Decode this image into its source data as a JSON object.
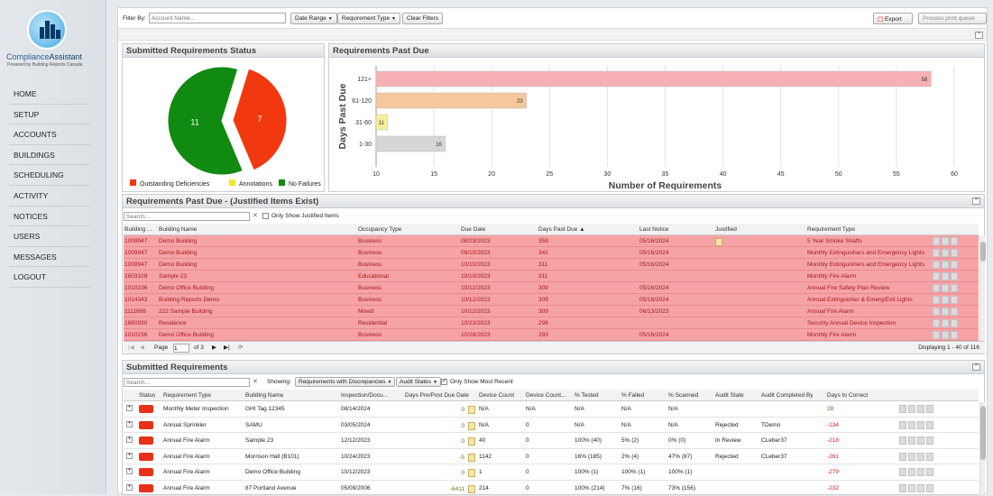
{
  "brand": {
    "name_a": "Compliance",
    "name_b": "Assistant",
    "tagline": "Powered by Building Reports Canada"
  },
  "nav": [
    "HOME",
    "SETUP",
    "ACCOUNTS",
    "BUILDINGS",
    "SCHEDULING",
    "ACTIVITY",
    "NOTICES",
    "USERS",
    "MESSAGES",
    "LOGOUT"
  ],
  "filter": {
    "label": "Filter By:",
    "account_placeholder": "Account Name...",
    "date_range": "Date Range",
    "requirement_type": "Requirement Type",
    "clear": "Clear Filters",
    "export": "Export",
    "process_queue": "Process print queue"
  },
  "status_panel": {
    "title": "Submitted Requirements Status"
  },
  "pastdue_panel": {
    "title": "Requirements Past Due"
  },
  "pie": {
    "type": "pie",
    "slices": [
      {
        "label": "Outstanding Deficiencies",
        "value": 7,
        "color": "#f2380f"
      },
      {
        "label": "Annotations",
        "value": 0,
        "color": "#f2e82a"
      },
      {
        "label": "No Failures",
        "value": 11,
        "color": "#108a10"
      }
    ]
  },
  "chart_data": {
    "type": "bar",
    "title": "",
    "xlabel": "Number of Requirements",
    "ylabel": "Days Past Due",
    "categories": [
      "121+",
      "61-120",
      "31-60",
      "1-30"
    ],
    "values": [
      58,
      23,
      11,
      16
    ],
    "colors": [
      "#f7b0b3",
      "#f4c89c",
      "#f6f09a",
      "#d6d6d6"
    ],
    "xlim": [
      10,
      60
    ],
    "xticks": [
      10,
      15,
      20,
      25,
      30,
      35,
      40,
      45,
      50,
      55,
      60
    ]
  },
  "justified": {
    "title": "Requirements Past Due - (Justified Items Exist)",
    "search_placeholder": "Search...",
    "only_justified": "Only Show Justified Items",
    "headers": [
      "Building ...",
      "Building Name",
      "Occupancy Type",
      "Due Date",
      "Days Past Due ▲",
      "Last Notice",
      "Justified",
      "Requirement Type"
    ],
    "rows": [
      [
        "1009947",
        "Demo Building",
        "Business",
        "08/23/2023",
        "359",
        "05/16/2024",
        "doc",
        "5 Year Smoke Shafts"
      ],
      [
        "1009947",
        "Demo Building",
        "Business",
        "09/10/2023",
        "341",
        "05/16/2024",
        "",
        "Monthly Extinguishers and Emergency Lights"
      ],
      [
        "1009947",
        "Demo Building",
        "Business",
        "10/10/2023",
        "311",
        "05/16/2024",
        "",
        "Monthly Extinguishers and Emergency Lights"
      ],
      [
        "1603109",
        "Sample 23",
        "Educational",
        "10/10/2023",
        "311",
        "",
        "",
        "Monthly Fire Alarm"
      ],
      [
        "1010236",
        "Demo Office Building",
        "Business",
        "10/12/2023",
        "309",
        "05/16/2024",
        "",
        "Annual Fire Safety Plan Review"
      ],
      [
        "1014343",
        "Building Reports Demo",
        "Business",
        "10/12/2023",
        "309",
        "05/16/2024",
        "",
        "Annual Extinguisher & Emerg/Exit Lights"
      ],
      [
        "1111698",
        "222 Sample Building",
        "Mixed",
        "10/12/2023",
        "309",
        "06/13/2023",
        "",
        "Annual Fire Alarm"
      ],
      [
        "1680930",
        "Residence",
        "Residential",
        "10/23/2023",
        "298",
        "",
        "",
        "Security Annual Device Inspection"
      ],
      [
        "1010236",
        "Demo Office Building",
        "Business",
        "10/28/2023",
        "293",
        "05/16/2024",
        "",
        "Monthly Fire Alarm"
      ]
    ],
    "pager": {
      "page_label": "Page",
      "page": "1",
      "of": "of 3",
      "displaying": "Displaying 1 - 40 of 116"
    }
  },
  "submitted": {
    "title": "Submitted Requirements",
    "search_placeholder": "Search...",
    "showing": "Showing:",
    "filter1": "Requirements with Discrepancies",
    "filter2": "Audit States",
    "most_recent": "Only Show Most Recent",
    "headers": [
      "Status",
      "Requirement Type",
      "Building Name",
      "Inspection/Docu...",
      "Days Pre/Post Due Date",
      "Device Count",
      "Device Count...",
      "% Tested",
      "% Failed",
      "% Scanned",
      "Audit State",
      "Audit Completed By",
      "Days to Correct"
    ],
    "rows": [
      [
        "Monthly Meter Inspection",
        "GHI Tag 12345",
        "08/14/2024",
        "0",
        "N/A",
        "N/A",
        "N/A",
        "N/A",
        "N/A",
        "",
        "",
        "28"
      ],
      [
        "Annual Sprinkler",
        "SAMU",
        "03/05/2024",
        "0",
        "N/A",
        "0",
        "N/A",
        "N/A",
        "N/A",
        "Rejected",
        "TDemo",
        "-134"
      ],
      [
        "Annual Fire Alarm",
        "Sample 23",
        "12/12/2023",
        "0",
        "40",
        "0",
        "100% (40)",
        "5% (2)",
        "0% (0)",
        "In Review",
        "CLeber37",
        "-218"
      ],
      [
        "Annual Fire Alarm",
        "Morrison Hall (B101)",
        "10/24/2023",
        "-5",
        "1142",
        "0",
        "16% (185)",
        "2% (4)",
        "47% (87)",
        "Rejected",
        "CLeber37",
        "-261"
      ],
      [
        "Annual Fire Alarm",
        "Demo Office Building",
        "10/12/2023",
        "0",
        "1",
        "0",
        "100% (1)",
        "100% (1)",
        "100% (1)",
        "",
        "",
        "-279"
      ],
      [
        "Annual Fire Alarm",
        "87 Portland Avenue",
        "05/09/2006",
        "-6411",
        "214",
        "0",
        "100% (214)",
        "7% (16)",
        "73% (156)",
        "",
        "",
        "-232"
      ]
    ]
  }
}
